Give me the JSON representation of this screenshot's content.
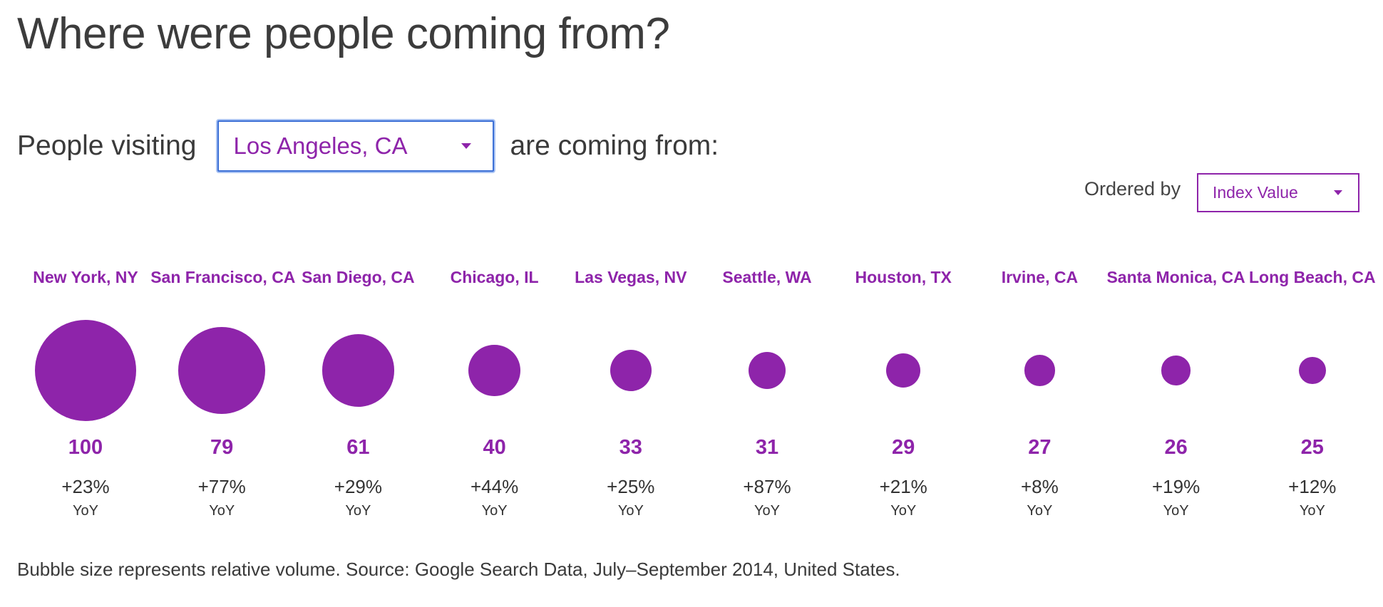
{
  "header": {
    "title": "Where were people coming from?"
  },
  "filter": {
    "prefix": "People visiting",
    "city_select_value": "Los Angeles, CA",
    "suffix": "are coming from:"
  },
  "sort": {
    "label": "Ordered by",
    "select_value": "Index Value"
  },
  "colors": {
    "accent": "#8e24aa",
    "focus_border": "#3b6fd6"
  },
  "chart_data": {
    "type": "bubble",
    "categories": [
      "New York, NY",
      "San Francisco, CA",
      "San Diego, CA",
      "Chicago, IL",
      "Las Vegas, NV",
      "Seattle, WA",
      "Houston, TX",
      "Irvine, CA",
      "Santa Monica, CA",
      "Long Beach, CA"
    ],
    "values": [
      100,
      79,
      61,
      40,
      33,
      31,
      29,
      27,
      26,
      25
    ],
    "yoy": [
      "+23%",
      "+77%",
      "+29%",
      "+44%",
      "+25%",
      "+87%",
      "+21%",
      "+8%",
      "+19%",
      "+12%"
    ],
    "yoy_label": "YoY",
    "relative_volume": [
      1.0,
      0.735,
      0.51,
      0.26,
      0.17,
      0.135,
      0.115,
      0.095,
      0.085,
      0.07
    ]
  },
  "footnote": "Bubble size represents relative volume. Source: Google Search Data, July–September 2014, United States."
}
